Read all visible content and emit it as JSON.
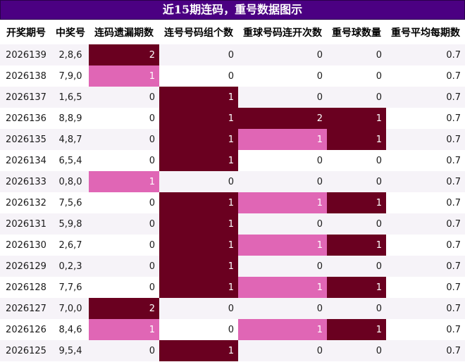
{
  "title": "近15期连码，重号数据图示",
  "headers": [
    "开奖期号",
    "中奖号",
    "连码遗漏期数",
    "连号号码组个数",
    "重球号码连开次数",
    "重号球数量",
    "重号平均每期数"
  ],
  "colors": {
    "title_bg": "#4b0082",
    "dark": "#6a0020",
    "pink": "#e066b5",
    "stripe": "#f6f3f8"
  },
  "rows": [
    {
      "period": "2026139",
      "nums": "2,8,6",
      "miss": "2",
      "groups": "0",
      "repeat_runs": "0",
      "repeat_count": "0",
      "avg": "0.7"
    },
    {
      "period": "2026138",
      "nums": "7,9,0",
      "miss": "1",
      "groups": "0",
      "repeat_runs": "0",
      "repeat_count": "0",
      "avg": "0.7"
    },
    {
      "period": "2026137",
      "nums": "1,6,5",
      "miss": "0",
      "groups": "1",
      "repeat_runs": "0",
      "repeat_count": "0",
      "avg": "0.7"
    },
    {
      "period": "2026136",
      "nums": "8,8,9",
      "miss": "0",
      "groups": "1",
      "repeat_runs": "2",
      "repeat_count": "1",
      "avg": "0.7"
    },
    {
      "period": "2026135",
      "nums": "4,8,7",
      "miss": "0",
      "groups": "1",
      "repeat_runs": "1",
      "repeat_count": "1",
      "avg": "0.7"
    },
    {
      "period": "2026134",
      "nums": "6,5,4",
      "miss": "0",
      "groups": "1",
      "repeat_runs": "0",
      "repeat_count": "0",
      "avg": "0.7"
    },
    {
      "period": "2026133",
      "nums": "0,8,0",
      "miss": "1",
      "groups": "0",
      "repeat_runs": "0",
      "repeat_count": "0",
      "avg": "0.7"
    },
    {
      "period": "2026132",
      "nums": "7,5,6",
      "miss": "0",
      "groups": "1",
      "repeat_runs": "1",
      "repeat_count": "1",
      "avg": "0.7"
    },
    {
      "period": "2026131",
      "nums": "5,9,8",
      "miss": "0",
      "groups": "1",
      "repeat_runs": "0",
      "repeat_count": "0",
      "avg": "0.7"
    },
    {
      "period": "2026130",
      "nums": "2,6,7",
      "miss": "0",
      "groups": "1",
      "repeat_runs": "1",
      "repeat_count": "1",
      "avg": "0.7"
    },
    {
      "period": "2026129",
      "nums": "0,2,3",
      "miss": "0",
      "groups": "1",
      "repeat_runs": "0",
      "repeat_count": "0",
      "avg": "0.7"
    },
    {
      "period": "2026128",
      "nums": "7,7,6",
      "miss": "0",
      "groups": "1",
      "repeat_runs": "1",
      "repeat_count": "1",
      "avg": "0.7"
    },
    {
      "period": "2026127",
      "nums": "7,0,0",
      "miss": "2",
      "groups": "0",
      "repeat_runs": "0",
      "repeat_count": "0",
      "avg": "0.7"
    },
    {
      "period": "2026126",
      "nums": "8,4,6",
      "miss": "1",
      "groups": "0",
      "repeat_runs": "1",
      "repeat_count": "1",
      "avg": "0.7"
    },
    {
      "period": "2026125",
      "nums": "9,5,4",
      "miss": "0",
      "groups": "1",
      "repeat_runs": "0",
      "repeat_count": "0",
      "avg": "0.7"
    }
  ]
}
